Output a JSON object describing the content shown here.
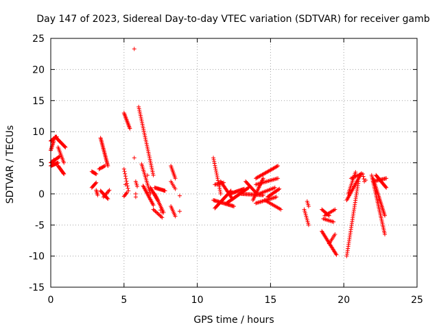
{
  "chart_data": {
    "type": "scatter",
    "title": "Day 147 of 2023, Sidereal Day-to-day VTEC variation (SDTVAR) for receiver gamb",
    "xlabel": "GPS time / hours",
    "ylabel": "SDTVAR / TECUs",
    "xlim": [
      0,
      25
    ],
    "ylim": [
      -15,
      25
    ],
    "xticks": [
      "0",
      "5",
      "10",
      "15",
      "20",
      "25"
    ],
    "yticks": [
      "25",
      "20",
      "15",
      "10",
      "5",
      "0",
      "-5",
      "-10",
      "-15"
    ],
    "grid": true,
    "marker": "+",
    "color": "#ff0000",
    "segments": [
      [
        0.0,
        8.5,
        0.4,
        9.2,
        20
      ],
      [
        0.3,
        9.2,
        1.0,
        7.5,
        25
      ],
      [
        0.0,
        4.5,
        0.5,
        5.0,
        15
      ],
      [
        0.0,
        7.0,
        0.2,
        8.5,
        10
      ],
      [
        0.0,
        5.0,
        0.6,
        6.0,
        15
      ],
      [
        0.5,
        4.5,
        0.9,
        3.2,
        15
      ],
      [
        0.5,
        7.5,
        0.9,
        5.0,
        12
      ],
      [
        2.8,
        3.6,
        3.1,
        3.2,
        8
      ],
      [
        2.8,
        1.0,
        3.1,
        1.8,
        8
      ],
      [
        3.1,
        0.6,
        3.2,
        -0.2,
        5
      ],
      [
        3.3,
        4.0,
        3.7,
        4.5,
        8
      ],
      [
        3.4,
        9.0,
        3.9,
        4.5,
        25
      ],
      [
        3.4,
        0.5,
        3.9,
        -0.8,
        12
      ],
      [
        3.6,
        -0.5,
        4.0,
        0.6,
        8
      ],
      [
        5.0,
        13.0,
        5.4,
        10.5,
        15
      ],
      [
        5.0,
        4.0,
        5.3,
        0.5,
        10
      ],
      [
        5.0,
        -0.4,
        5.2,
        0.2,
        5
      ],
      [
        5.8,
        2.0,
        5.9,
        1.2,
        4
      ],
      [
        6.0,
        14.0,
        7.0,
        3.0,
        40
      ],
      [
        6.2,
        4.8,
        6.8,
        0.0,
        20
      ],
      [
        6.3,
        1.3,
        7.0,
        -1.8,
        20
      ],
      [
        6.8,
        1.0,
        7.3,
        -1.0,
        15
      ],
      [
        7.1,
        1.0,
        7.8,
        0.5,
        15
      ],
      [
        7.1,
        0.0,
        7.7,
        -3.0,
        15
      ],
      [
        7.0,
        -2.5,
        7.6,
        -3.8,
        10
      ],
      [
        8.2,
        4.5,
        8.5,
        2.5,
        10
      ],
      [
        8.2,
        2.0,
        8.5,
        0.8,
        6
      ],
      [
        8.2,
        -2.0,
        8.5,
        -3.6,
        8
      ],
      [
        11.1,
        5.8,
        11.6,
        0.0,
        20
      ],
      [
        11.2,
        1.5,
        11.8,
        1.8,
        10
      ],
      [
        11.2,
        -2.3,
        12.3,
        0.5,
        25
      ],
      [
        11.1,
        -1.0,
        12.5,
        -2.0,
        25
      ],
      [
        11.6,
        2.0,
        12.4,
        -0.8,
        20
      ],
      [
        12.0,
        -1.5,
        13.5,
        1.0,
        30
      ],
      [
        12.2,
        0.0,
        13.2,
        0.8,
        20
      ],
      [
        13.3,
        2.0,
        14.0,
        0.2,
        15
      ],
      [
        13.0,
        0.0,
        14.5,
        -0.2,
        25
      ],
      [
        13.8,
        -1.0,
        14.5,
        2.5,
        20
      ],
      [
        14.0,
        2.5,
        15.5,
        4.5,
        25
      ],
      [
        14.0,
        1.5,
        15.5,
        2.5,
        20
      ],
      [
        14.2,
        0.0,
        15.3,
        1.0,
        15
      ],
      [
        14.0,
        -1.5,
        15.4,
        -0.5,
        20
      ],
      [
        14.6,
        -1.0,
        15.7,
        -2.5,
        15
      ],
      [
        14.8,
        -0.5,
        15.6,
        0.8,
        15
      ],
      [
        17.5,
        -1.2,
        17.6,
        -2.0,
        4
      ],
      [
        17.3,
        -2.5,
        17.6,
        -5.0,
        10
      ],
      [
        18.5,
        -2.5,
        19.0,
        -3.5,
        10
      ],
      [
        18.6,
        -4.0,
        19.3,
        -4.5,
        10
      ],
      [
        18.7,
        -3.5,
        19.4,
        -2.5,
        10
      ],
      [
        18.5,
        -6.0,
        19.5,
        -9.8,
        25
      ],
      [
        19.0,
        -8.0,
        19.4,
        -6.5,
        8
      ],
      [
        20.2,
        -10.0,
        21.0,
        2.0,
        40
      ],
      [
        20.3,
        0.0,
        20.8,
        3.5,
        15
      ],
      [
        20.2,
        -1.0,
        21.2,
        3.3,
        25
      ],
      [
        20.5,
        2.5,
        21.2,
        3.2,
        10
      ],
      [
        21.3,
        3.2,
        21.4,
        2.0,
        4
      ],
      [
        21.9,
        3.0,
        22.8,
        -6.5,
        40
      ],
      [
        22.0,
        2.5,
        22.8,
        -3.5,
        30
      ],
      [
        22.2,
        3.0,
        22.9,
        1.0,
        20
      ],
      [
        22.0,
        2.0,
        22.9,
        2.5,
        15
      ]
    ],
    "points": [
      [
        5.7,
        23.3
      ],
      [
        5.7,
        5.8
      ],
      [
        5.8,
        0.0
      ],
      [
        5.8,
        -0.5
      ],
      [
        8.8,
        -0.3
      ],
      [
        8.8,
        -2.8
      ],
      [
        7.6,
        -3.0
      ],
      [
        0.2,
        5.5
      ],
      [
        5.1,
        1.5
      ],
      [
        6.6,
        3.0
      ],
      [
        7.5,
        -2.6
      ],
      [
        21.5,
        2.2
      ]
    ]
  }
}
